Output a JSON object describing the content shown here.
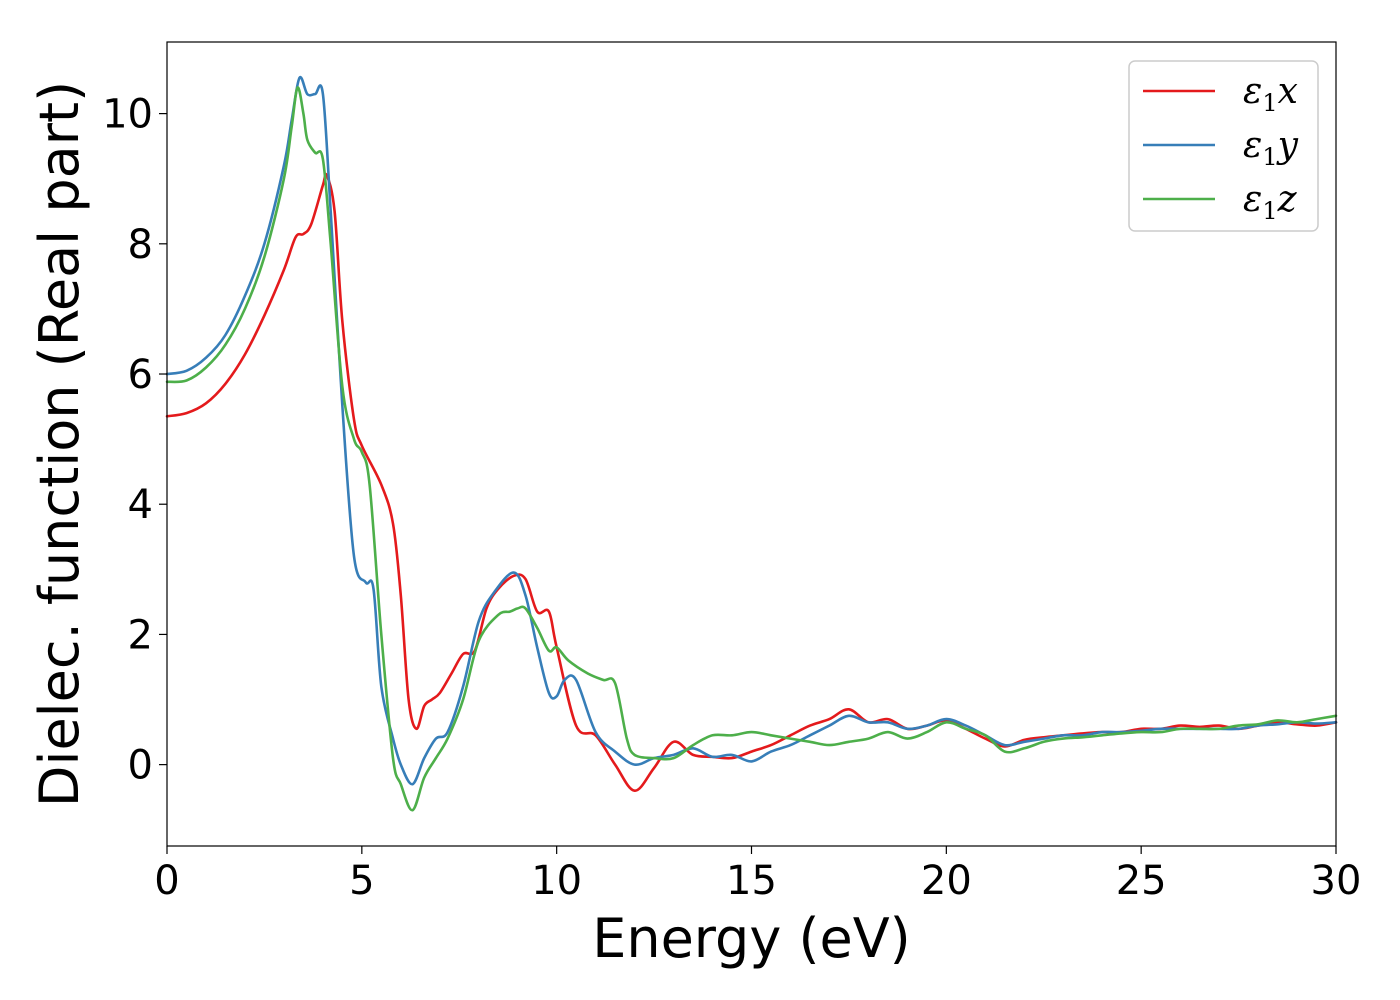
{
  "chart_data": {
    "type": "line",
    "title": "",
    "xlabel": "Energy (eV)",
    "ylabel": "Dielec. function (Real part)",
    "xlim": [
      0,
      30
    ],
    "ylim": [
      -1.25,
      11.1
    ],
    "xticks": [
      0,
      5,
      10,
      15,
      20,
      25,
      30
    ],
    "yticks": [
      0,
      2,
      4,
      6,
      8,
      10
    ],
    "grid": false,
    "legend_position": "top-right",
    "series": [
      {
        "name": "ε1x",
        "legend_base": "ε",
        "legend_sub": "1",
        "legend_var": "x",
        "color": "#e41a1c",
        "x": [
          0,
          0.5,
          1,
          1.5,
          2,
          2.5,
          3,
          3.3,
          3.5,
          3.7,
          4.0,
          4.1,
          4.3,
          4.5,
          4.8,
          5.0,
          5.5,
          5.8,
          6.0,
          6.2,
          6.4,
          6.6,
          6.8,
          7.0,
          7.3,
          7.6,
          7.9,
          8.2,
          8.5,
          8.9,
          9.2,
          9.5,
          9.8,
          10.0,
          10.5,
          11.0,
          11.5,
          12.0,
          12.5,
          13.0,
          13.5,
          14.0,
          14.5,
          15.0,
          15.5,
          16.0,
          16.5,
          17.0,
          17.5,
          18.0,
          18.5,
          19.0,
          19.5,
          20.0,
          20.5,
          21.0,
          21.5,
          22.0,
          22.5,
          23.0,
          23.5,
          24.0,
          24.5,
          25.0,
          25.5,
          26.0,
          26.5,
          27.0,
          27.5,
          28.0,
          28.5,
          29.0,
          29.5,
          30.0
        ],
        "y": [
          5.35,
          5.4,
          5.55,
          5.85,
          6.3,
          6.9,
          7.6,
          8.1,
          8.15,
          8.3,
          8.9,
          9.05,
          8.5,
          6.8,
          5.3,
          4.9,
          4.3,
          3.7,
          2.6,
          1.0,
          0.55,
          0.9,
          1.0,
          1.1,
          1.4,
          1.7,
          1.75,
          2.4,
          2.7,
          2.9,
          2.85,
          2.35,
          2.35,
          1.8,
          0.6,
          0.45,
          0.0,
          -0.4,
          -0.05,
          0.35,
          0.15,
          0.12,
          0.1,
          0.2,
          0.3,
          0.45,
          0.6,
          0.7,
          0.85,
          0.65,
          0.7,
          0.55,
          0.6,
          0.68,
          0.55,
          0.4,
          0.28,
          0.38,
          0.42,
          0.45,
          0.48,
          0.5,
          0.5,
          0.55,
          0.55,
          0.6,
          0.58,
          0.6,
          0.55,
          0.6,
          0.65,
          0.62,
          0.6,
          0.65
        ]
      },
      {
        "name": "ε1y",
        "legend_base": "ε",
        "legend_sub": "1",
        "legend_var": "y",
        "color": "#377eb8",
        "x": [
          0,
          0.5,
          1,
          1.5,
          2,
          2.5,
          3,
          3.2,
          3.4,
          3.6,
          3.8,
          4.0,
          4.2,
          4.5,
          4.8,
          5.1,
          5.3,
          5.5,
          5.8,
          6.0,
          6.3,
          6.6,
          6.9,
          7.2,
          7.6,
          8.0,
          8.4,
          8.9,
          9.2,
          9.5,
          9.8,
          10.0,
          10.2,
          10.5,
          11.0,
          11.5,
          12.0,
          12.5,
          13.0,
          13.5,
          14.0,
          14.5,
          15.0,
          15.5,
          16.0,
          16.5,
          17.0,
          17.5,
          18.0,
          18.5,
          19.0,
          19.5,
          20.0,
          20.5,
          21.0,
          21.5,
          22.0,
          22.5,
          23.0,
          23.5,
          24.0,
          24.5,
          25.0,
          25.5,
          26.0,
          26.5,
          27.0,
          27.5,
          28.0,
          28.5,
          29.0,
          29.5,
          30.0
        ],
        "y": [
          6.0,
          6.05,
          6.25,
          6.6,
          7.2,
          8.0,
          9.2,
          9.9,
          10.55,
          10.3,
          10.3,
          10.3,
          8.5,
          5.5,
          3.2,
          2.8,
          2.7,
          1.2,
          0.4,
          0.0,
          -0.3,
          0.1,
          0.4,
          0.5,
          1.2,
          2.2,
          2.65,
          2.95,
          2.6,
          1.8,
          1.1,
          1.05,
          1.3,
          1.3,
          0.5,
          0.2,
          0.0,
          0.1,
          0.15,
          0.25,
          0.12,
          0.15,
          0.05,
          0.2,
          0.3,
          0.45,
          0.6,
          0.75,
          0.65,
          0.65,
          0.55,
          0.6,
          0.7,
          0.6,
          0.45,
          0.3,
          0.35,
          0.4,
          0.45,
          0.45,
          0.5,
          0.5,
          0.52,
          0.55,
          0.55,
          0.55,
          0.55,
          0.55,
          0.6,
          0.62,
          0.65,
          0.63,
          0.65
        ]
      },
      {
        "name": "ε1z",
        "legend_base": "ε",
        "legend_sub": "1",
        "legend_var": "z",
        "color": "#4daf4a",
        "x": [
          0,
          0.5,
          1,
          1.5,
          2,
          2.5,
          3,
          3.2,
          3.35,
          3.5,
          3.6,
          3.8,
          4.0,
          4.2,
          4.5,
          4.8,
          5.0,
          5.2,
          5.5,
          5.8,
          6.0,
          6.3,
          6.6,
          6.9,
          7.2,
          7.6,
          8.0,
          8.5,
          8.8,
          9.0,
          9.2,
          9.5,
          9.8,
          10.0,
          10.3,
          10.8,
          11.2,
          11.5,
          11.8,
          12.0,
          12.5,
          13.0,
          13.5,
          14.0,
          14.5,
          15.0,
          15.5,
          16.0,
          16.5,
          17.0,
          17.5,
          18.0,
          18.5,
          19.0,
          19.5,
          20.0,
          20.5,
          21.0,
          21.5,
          22.0,
          22.5,
          23.0,
          23.5,
          24.0,
          24.5,
          25.0,
          25.5,
          26.0,
          26.5,
          27.0,
          27.5,
          28.0,
          28.5,
          29.0,
          29.5,
          30.0
        ],
        "y": [
          5.88,
          5.9,
          6.1,
          6.45,
          7.0,
          7.8,
          9.0,
          9.8,
          10.4,
          10.0,
          9.6,
          9.4,
          9.3,
          8.0,
          5.8,
          5.0,
          4.8,
          4.3,
          2.0,
          0.1,
          -0.3,
          -0.7,
          -0.2,
          0.1,
          0.4,
          1.0,
          1.9,
          2.3,
          2.35,
          2.4,
          2.4,
          2.1,
          1.75,
          1.8,
          1.6,
          1.4,
          1.3,
          1.25,
          0.4,
          0.15,
          0.1,
          0.1,
          0.3,
          0.45,
          0.45,
          0.5,
          0.45,
          0.4,
          0.35,
          0.3,
          0.35,
          0.4,
          0.5,
          0.4,
          0.5,
          0.65,
          0.55,
          0.45,
          0.2,
          0.25,
          0.35,
          0.4,
          0.42,
          0.45,
          0.48,
          0.5,
          0.5,
          0.55,
          0.55,
          0.55,
          0.6,
          0.62,
          0.68,
          0.65,
          0.7,
          0.75
        ]
      }
    ]
  }
}
